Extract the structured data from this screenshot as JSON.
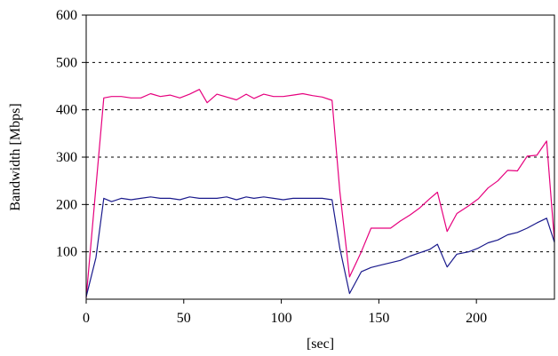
{
  "chart_data": {
    "type": "line",
    "xlabel": "[sec]",
    "ylabel": "Bandwidth [Mbps]",
    "xlim": [
      0,
      240
    ],
    "ylim": [
      0,
      600
    ],
    "x_ticks": [
      0,
      50,
      100,
      150,
      200
    ],
    "y_ticks": [
      100,
      200,
      300,
      400,
      500,
      600
    ],
    "grid": "horizontal-dashed",
    "legend": "none",
    "series": [
      {
        "color": "#e6007e",
        "x": [
          0,
          9,
          13,
          18,
          23,
          28,
          33,
          38,
          43,
          48,
          53,
          58,
          62,
          67,
          72,
          77,
          82,
          86,
          91,
          96,
          101,
          106,
          111,
          116,
          121,
          126,
          130,
          135,
          141,
          146,
          151,
          156,
          161,
          166,
          171,
          176,
          180,
          185,
          190,
          196,
          201,
          206,
          211,
          216,
          221,
          226,
          231,
          236,
          240
        ],
        "y": [
          3,
          425,
          428,
          428,
          425,
          425,
          434,
          428,
          431,
          425,
          433,
          443,
          415,
          433,
          427,
          421,
          433,
          424,
          433,
          428,
          428,
          431,
          434,
          430,
          427,
          420,
          227,
          47,
          100,
          150,
          150,
          150,
          165,
          178,
          193,
          212,
          226,
          143,
          181,
          197,
          212,
          235,
          250,
          272,
          271,
          302,
          304,
          334,
          123
        ]
      },
      {
        "color": "#1a1a8c",
        "x": [
          0,
          5,
          9,
          13,
          18,
          23,
          28,
          33,
          38,
          43,
          48,
          53,
          58,
          62,
          67,
          72,
          77,
          82,
          86,
          91,
          96,
          101,
          106,
          111,
          116,
          121,
          126,
          130,
          135,
          141,
          146,
          151,
          156,
          161,
          166,
          171,
          176,
          180,
          185,
          190,
          196,
          201,
          206,
          211,
          216,
          221,
          226,
          231,
          236,
          240
        ],
        "y": [
          5,
          88,
          213,
          206,
          213,
          210,
          213,
          216,
          213,
          213,
          210,
          216,
          213,
          213,
          213,
          216,
          210,
          216,
          213,
          216,
          213,
          210,
          213,
          213,
          213,
          213,
          210,
          107,
          12,
          58,
          67,
          72,
          77,
          82,
          91,
          98,
          105,
          116,
          68,
          95,
          100,
          108,
          119,
          125,
          136,
          141,
          150,
          161,
          171,
          120
        ]
      }
    ]
  }
}
